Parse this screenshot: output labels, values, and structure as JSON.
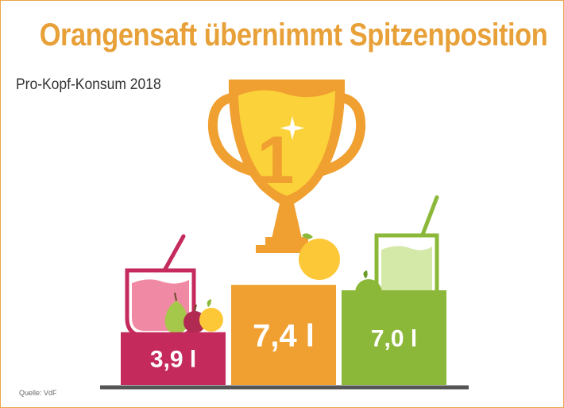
{
  "header": {
    "title": "Orangensaft übernimmt Spitzenposition",
    "subtitle": "Pro-Kopf-Konsum 2018",
    "rank_label": "1"
  },
  "footer": {
    "source": "Quelle: VdF"
  },
  "colors": {
    "title": "#e8a038",
    "orange": "#f0a030",
    "magenta": "#c42a5c",
    "green": "#8cb83a",
    "pink_juice": "#f08aa4",
    "yellow_juice": "#fcd23a",
    "green_juice": "#d4e8a8",
    "baseline": "#555555"
  },
  "chart_data": {
    "type": "bar",
    "title": "Orangensaft übernimmt Spitzenposition",
    "subtitle": "Pro-Kopf-Konsum 2018",
    "unit": "l",
    "categories": [],
    "values": [
      3.9,
      7.4,
      7.0
    ],
    "labels": [
      "3,9 l",
      "7,4 l",
      "7,0 l"
    ],
    "order": [
      "left",
      "center",
      "right"
    ],
    "source": "Quelle: VdF"
  }
}
